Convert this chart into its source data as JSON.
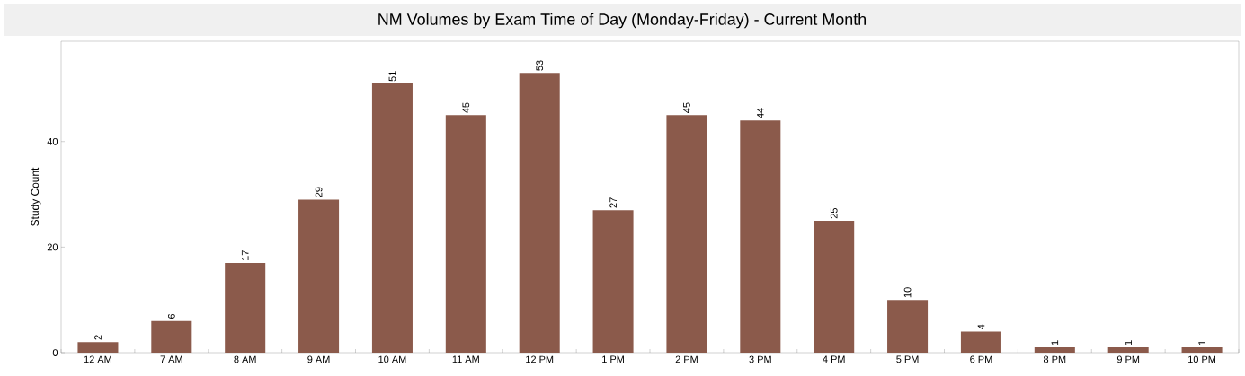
{
  "chart_data": {
    "type": "bar",
    "title": "NM Volumes by Exam Time of Day (Monday-Friday) - Current Month",
    "ylabel": "Study Count",
    "categories": [
      "12 AM",
      "7 AM",
      "8 AM",
      "9 AM",
      "10 AM",
      "11 AM",
      "12 PM",
      "1 PM",
      "2 PM",
      "3 PM",
      "4 PM",
      "5 PM",
      "6 PM",
      "8 PM",
      "9 PM",
      "10 PM"
    ],
    "values": [
      2,
      6,
      17,
      29,
      51,
      45,
      53,
      27,
      45,
      44,
      25,
      10,
      4,
      1,
      1,
      1
    ],
    "color": "#8b5a4b",
    "ylim": [
      0,
      59
    ],
    "yticks": [
      0,
      20,
      40
    ],
    "data_labels": true
  }
}
